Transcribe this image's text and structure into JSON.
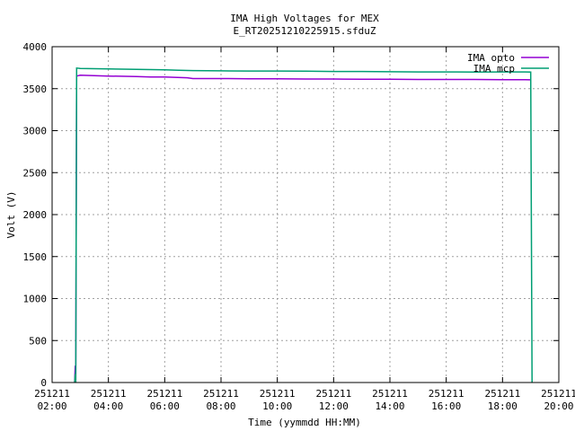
{
  "chart_data": {
    "type": "line",
    "title": "IMA High Voltages for MEX",
    "subtitle": "E_RT20251210225915.sfduZ",
    "xlabel": "Time (yymmdd HH:MM)",
    "ylabel": "Volt (V)",
    "xlim_hours": [
      2.0,
      20.0
    ],
    "ylim": [
      0,
      4000
    ],
    "grid": true,
    "legend_position": "top-right",
    "x_ticks": [
      {
        "hour": 2,
        "date": "251211",
        "time": "02:00"
      },
      {
        "hour": 4,
        "date": "251211",
        "time": "04:00"
      },
      {
        "hour": 6,
        "date": "251211",
        "time": "06:00"
      },
      {
        "hour": 8,
        "date": "251211",
        "time": "08:00"
      },
      {
        "hour": 10,
        "date": "251211",
        "time": "10:00"
      },
      {
        "hour": 12,
        "date": "251211",
        "time": "12:00"
      },
      {
        "hour": 14,
        "date": "251211",
        "time": "14:00"
      },
      {
        "hour": 16,
        "date": "251211",
        "time": "16:00"
      },
      {
        "hour": 18,
        "date": "251211",
        "time": "18:00"
      },
      {
        "hour": 20,
        "date": "251211",
        "time": "20:00"
      }
    ],
    "y_ticks": [
      0,
      500,
      1000,
      1500,
      2000,
      2500,
      3000,
      3500,
      4000
    ],
    "series": [
      {
        "name": "IMA opto",
        "color": "#9400d3",
        "points": [
          [
            2.8,
            0
          ],
          [
            2.82,
            200
          ],
          [
            2.84,
            0
          ],
          [
            2.87,
            3650
          ],
          [
            3.0,
            3660
          ],
          [
            3.5,
            3655
          ],
          [
            4.0,
            3650
          ],
          [
            5.0,
            3645
          ],
          [
            5.5,
            3640
          ],
          [
            6.0,
            3640
          ],
          [
            6.8,
            3630
          ],
          [
            7.0,
            3620
          ],
          [
            8.0,
            3620
          ],
          [
            9.0,
            3618
          ],
          [
            10.0,
            3618
          ],
          [
            11.0,
            3615
          ],
          [
            12.0,
            3615
          ],
          [
            13.0,
            3612
          ],
          [
            14.0,
            3612
          ],
          [
            15.0,
            3610
          ],
          [
            16.0,
            3610
          ],
          [
            17.0,
            3610
          ],
          [
            18.0,
            3608
          ],
          [
            18.8,
            3608
          ],
          [
            19.0,
            3605
          ]
        ]
      },
      {
        "name": "IMA mcp",
        "color": "#009e73",
        "points": [
          [
            2.8,
            0
          ],
          [
            2.82,
            100
          ],
          [
            2.84,
            0
          ],
          [
            2.87,
            3745
          ],
          [
            3.0,
            3740
          ],
          [
            4.0,
            3735
          ],
          [
            5.0,
            3730
          ],
          [
            6.0,
            3725
          ],
          [
            6.5,
            3720
          ],
          [
            7.0,
            3715
          ],
          [
            8.0,
            3712
          ],
          [
            9.0,
            3710
          ],
          [
            10.0,
            3710
          ],
          [
            11.0,
            3708
          ],
          [
            12.0,
            3705
          ],
          [
            13.0,
            3705
          ],
          [
            14.0,
            3702
          ],
          [
            15.0,
            3700
          ],
          [
            16.0,
            3700
          ],
          [
            17.0,
            3698
          ],
          [
            18.0,
            3700
          ],
          [
            18.8,
            3700
          ],
          [
            19.0,
            3698
          ],
          [
            19.05,
            0
          ]
        ]
      }
    ]
  }
}
